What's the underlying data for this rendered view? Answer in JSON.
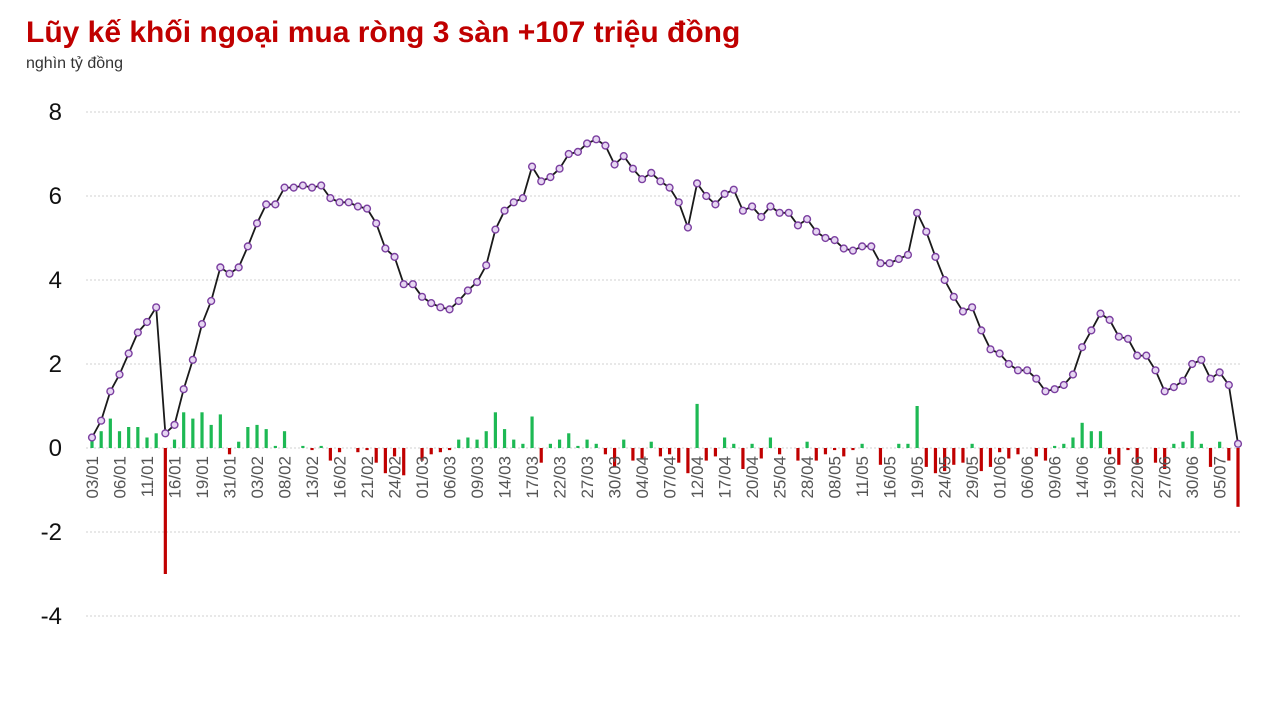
{
  "chart_data": {
    "type": "combo",
    "title": "Lũy kế khối ngoại mua ròng 3 sàn +107 triệu đồng",
    "subtitle": "nghìn tỷ đồng",
    "categories": [
      "03/01",
      null,
      null,
      "06/01",
      null,
      null,
      "11/01",
      null,
      null,
      "16/01",
      null,
      null,
      "19/01",
      null,
      null,
      "31/01",
      null,
      null,
      "03/02",
      null,
      null,
      "08/02",
      null,
      null,
      "13/02",
      null,
      null,
      "16/02",
      null,
      null,
      "21/02",
      null,
      null,
      "24/02",
      null,
      null,
      "01/03",
      null,
      null,
      "06/03",
      null,
      null,
      "09/03",
      null,
      null,
      "14/03",
      null,
      null,
      "17/03",
      null,
      null,
      "22/03",
      null,
      null,
      "27/03",
      null,
      null,
      "30/03",
      null,
      null,
      "04/04",
      null,
      null,
      "07/04",
      null,
      null,
      "12/04",
      null,
      null,
      "17/04",
      null,
      null,
      "20/04",
      null,
      null,
      "25/04",
      null,
      null,
      "28/04",
      null,
      null,
      "08/05",
      null,
      null,
      "11/05",
      null,
      null,
      "16/05",
      null,
      null,
      "19/05",
      null,
      null,
      "24/05",
      null,
      null,
      "29/05",
      null,
      null,
      "01/06",
      null,
      null,
      "06/06",
      null,
      null,
      "09/06",
      null,
      null,
      "14/06",
      null,
      null,
      "19/06",
      null,
      null,
      "22/06",
      null,
      null,
      "27/06",
      null,
      null,
      "30/06",
      null,
      null,
      "05/07",
      null,
      null
    ],
    "series": [
      {
        "type": "bar",
        "positive_color": "#1db954",
        "negative_color": "#c00000",
        "values": [
          0.25,
          0.4,
          0.7,
          0.4,
          0.5,
          0.5,
          0.25,
          0.35,
          -3.0,
          0.2,
          0.85,
          0.7,
          0.85,
          0.55,
          0.8,
          -0.15,
          0.15,
          0.5,
          0.55,
          0.45,
          0.05,
          0.4,
          0,
          0.05,
          -0.05,
          0.05,
          -0.3,
          -0.1,
          0,
          -0.1,
          -0.05,
          -0.35,
          -0.6,
          -0.2,
          -0.65,
          0,
          -0.3,
          -0.15,
          -0.1,
          -0.05,
          0.2,
          0.25,
          0.2,
          0.4,
          0.85,
          0.45,
          0.2,
          0.1,
          0.75,
          -0.35,
          0.1,
          0.2,
          0.35,
          0.05,
          0.2,
          0.1,
          -0.15,
          -0.45,
          0.2,
          -0.3,
          -0.25,
          0.15,
          -0.2,
          -0.15,
          -0.35,
          -0.6,
          1.05,
          -0.3,
          -0.2,
          0.25,
          0.1,
          -0.5,
          0.1,
          -0.25,
          0.25,
          -0.15,
          0,
          -0.3,
          0.15,
          -0.3,
          -0.15,
          -0.05,
          -0.2,
          -0.05,
          0.1,
          0,
          -0.4,
          0,
          0.1,
          0.1,
          1.0,
          -0.45,
          -0.6,
          -0.55,
          -0.4,
          -0.35,
          0.1,
          -0.55,
          -0.45,
          -0.1,
          -0.25,
          -0.15,
          0,
          -0.2,
          -0.3,
          0.05,
          0.1,
          0.25,
          0.6,
          0.4,
          0.4,
          -0.15,
          -0.4,
          -0.05,
          -0.4,
          0,
          -0.35,
          -0.5,
          0.1,
          0.15,
          0.4,
          0.1,
          -0.45,
          0.15,
          -0.3,
          -1.4
        ]
      },
      {
        "type": "line",
        "color": "#1a1a1a",
        "marker_color": "#7b3fa0",
        "values": [
          0.25,
          0.65,
          1.35,
          1.75,
          2.25,
          2.75,
          3.0,
          3.35,
          0.35,
          0.55,
          1.4,
          2.1,
          2.95,
          3.5,
          4.3,
          4.15,
          4.3,
          4.8,
          5.35,
          5.8,
          5.8,
          6.2,
          6.2,
          6.25,
          6.2,
          6.25,
          5.95,
          5.85,
          5.85,
          5.75,
          5.7,
          5.35,
          4.75,
          4.55,
          3.9,
          3.9,
          3.6,
          3.45,
          3.35,
          3.3,
          3.5,
          3.75,
          3.95,
          4.35,
          5.2,
          5.65,
          5.85,
          5.95,
          6.7,
          6.35,
          6.45,
          6.65,
          7.0,
          7.05,
          7.25,
          7.35,
          7.2,
          6.75,
          6.95,
          6.65,
          6.4,
          6.55,
          6.35,
          6.2,
          5.85,
          5.25,
          6.3,
          6.0,
          5.8,
          6.05,
          6.15,
          5.65,
          5.75,
          5.5,
          5.75,
          5.6,
          5.6,
          5.3,
          5.45,
          5.15,
          5.0,
          4.95,
          4.75,
          4.7,
          4.8,
          4.8,
          4.4,
          4.4,
          4.5,
          4.6,
          5.6,
          5.15,
          4.55,
          4.0,
          3.6,
          3.25,
          3.35,
          2.8,
          2.35,
          2.25,
          2.0,
          1.85,
          1.85,
          1.65,
          1.35,
          1.4,
          1.5,
          1.75,
          2.4,
          2.8,
          3.2,
          3.05,
          2.65,
          2.6,
          2.2,
          2.2,
          1.85,
          1.35,
          1.45,
          1.6,
          2.0,
          2.1,
          1.65,
          1.8,
          1.5,
          0.1
        ]
      }
    ],
    "ylim": [
      -4,
      8
    ],
    "yticks": [
      -4,
      -2,
      0,
      2,
      4,
      6,
      8
    ],
    "grid": true
  }
}
